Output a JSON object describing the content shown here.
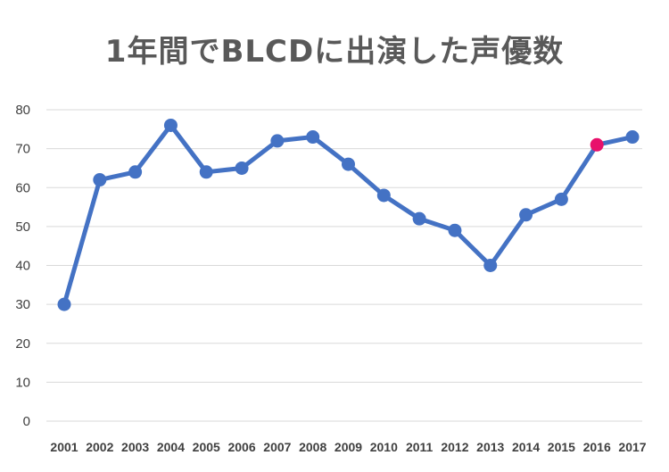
{
  "chart_data": {
    "type": "line",
    "title": "1年間でBLCDに出演した声優数",
    "xlabel": "",
    "ylabel": "",
    "ylim": [
      0,
      80
    ],
    "yticks": [
      "0",
      "10",
      "20",
      "30",
      "40",
      "50",
      "60",
      "70",
      "80"
    ],
    "grid": true,
    "categories": [
      "2001",
      "2002",
      "2003",
      "2004",
      "2005",
      "2006",
      "2007",
      "2008",
      "2009",
      "2010",
      "2011",
      "2012",
      "2013",
      "2014",
      "2015",
      "2016",
      "2017"
    ],
    "series": [
      {
        "color": "#4472C4",
        "values": [
          30,
          62,
          64,
          76,
          64,
          65,
          72,
          73,
          66,
          58,
          52,
          49,
          40,
          53,
          57,
          71,
          73
        ]
      }
    ],
    "highlight": {
      "category": "2016",
      "color": "#E8106B"
    }
  }
}
